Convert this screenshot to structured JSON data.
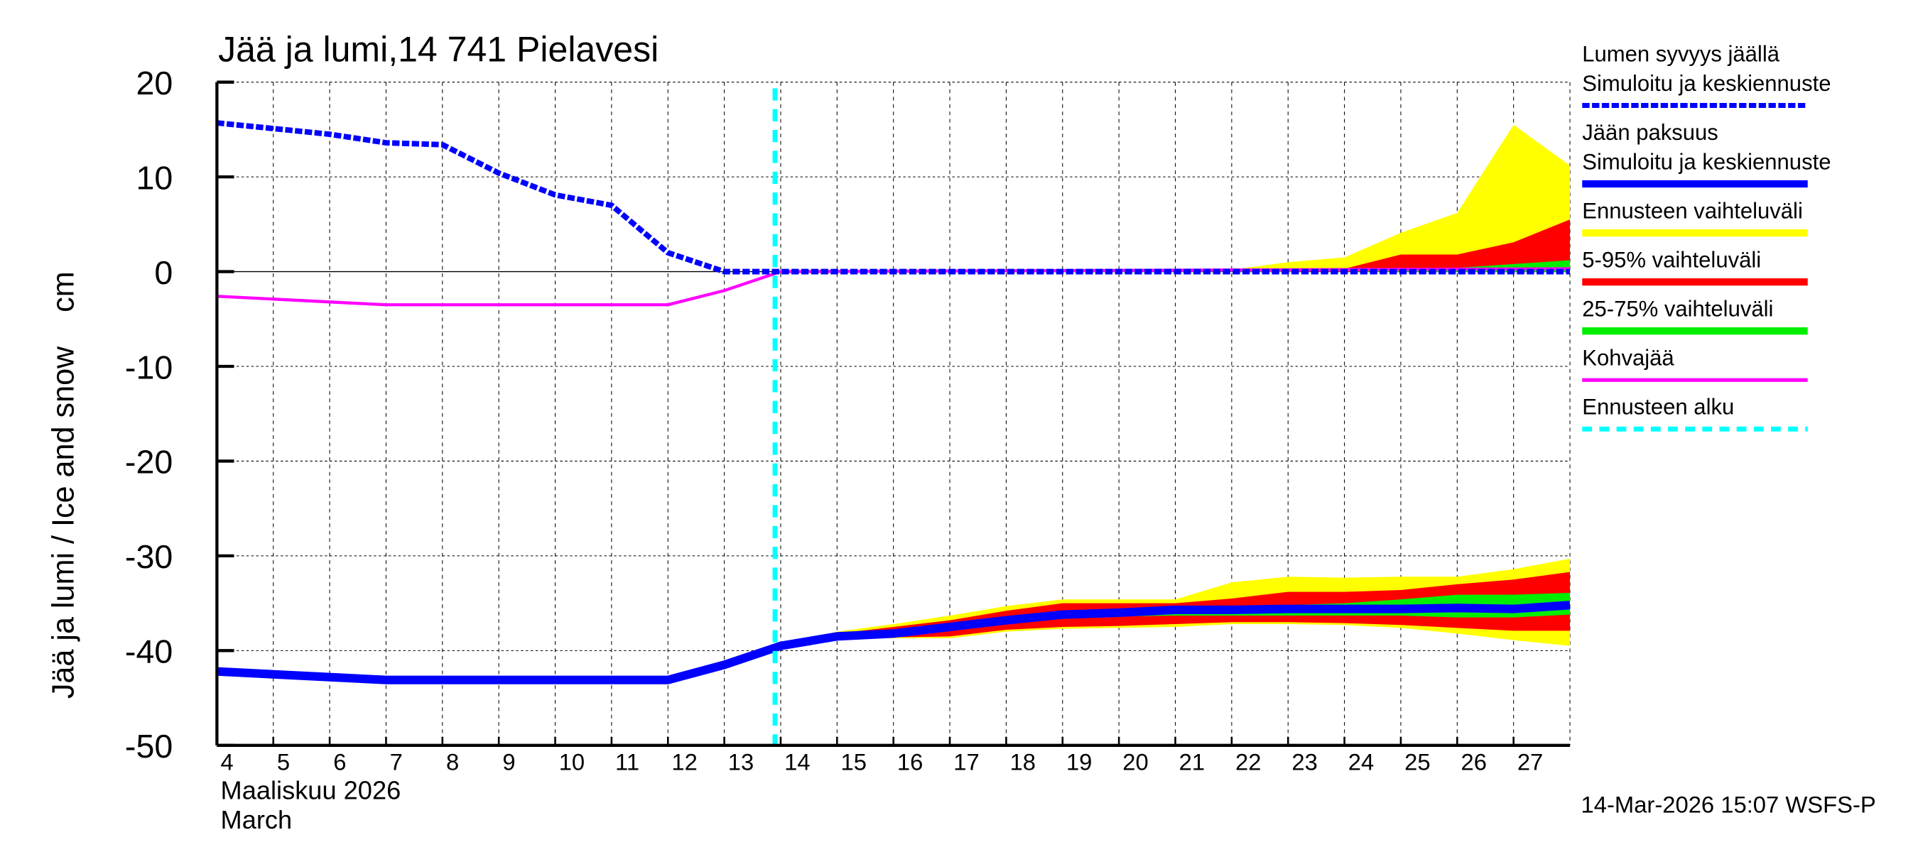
{
  "chart_data": {
    "type": "area",
    "title": "Jää ja lumi,14 741 Pielavesi",
    "ylabel": "Jää ja lumi / Ice and snow    cm",
    "xlabel_line1": "Maaliskuu 2026",
    "xlabel_line2": "March",
    "ylim": [
      -50,
      20
    ],
    "xlim": [
      4,
      28
    ],
    "yticks": [
      20,
      10,
      0,
      -10,
      -20,
      -30,
      -40,
      -50
    ],
    "xticks": [
      4,
      5,
      6,
      7,
      8,
      9,
      10,
      11,
      12,
      13,
      14,
      15,
      16,
      17,
      18,
      19,
      20,
      21,
      22,
      23,
      24,
      25,
      26,
      27
    ],
    "grid": true,
    "forecast_start": 13.9,
    "legend_position": "right",
    "legend": [
      {
        "label1": "Lumen syvyys jäällä",
        "label2": "Simuloitu ja keskiennuste",
        "color": "#0000ff",
        "style": "dashed-thick"
      },
      {
        "label1": "Jään paksuus",
        "label2": "Simuloitu ja keskiennuste",
        "color": "#0000ff",
        "style": "solid-thick"
      },
      {
        "label1": "Ennusteen vaihteluväli",
        "color": "#ffff00",
        "style": "band"
      },
      {
        "label1": "5-95% vaihteluväli",
        "color": "#ff0000",
        "style": "band"
      },
      {
        "label1": "25-75% vaihteluväli",
        "color": "#00ee00",
        "style": "band"
      },
      {
        "label1": "Kohvajää",
        "color": "#ff00ff",
        "style": "solid"
      },
      {
        "label1": "Ennusteen alku",
        "color": "#00ffff",
        "style": "dashed"
      }
    ],
    "snow": {
      "x": [
        4,
        5,
        6,
        7,
        8,
        9,
        10,
        11,
        12,
        13,
        14,
        28
      ],
      "y": [
        15.7,
        15.1,
        14.5,
        13.6,
        13.4,
        10.4,
        8.1,
        7.0,
        2.0,
        0,
        0,
        0
      ]
    },
    "kohva": {
      "x": [
        4,
        7,
        12,
        13,
        14,
        28
      ],
      "y": [
        -2.6,
        -3.5,
        -3.5,
        -2.0,
        0,
        0.3
      ]
    },
    "ice": {
      "x": [
        4,
        7,
        12,
        13,
        14,
        15,
        16,
        17,
        18,
        19,
        20,
        21,
        22,
        23,
        24,
        25,
        26,
        27,
        28
      ],
      "y": [
        -42.2,
        -43.1,
        -43.1,
        -41.5,
        -39.5,
        -38.5,
        -38.2,
        -37.5,
        -36.8,
        -36.2,
        -36.0,
        -35.7,
        -35.7,
        -35.6,
        -35.6,
        -35.6,
        -35.5,
        -35.6,
        -35.2
      ]
    },
    "ice_bands": {
      "x": [
        14,
        15,
        16,
        17,
        18,
        19,
        20,
        21,
        22,
        23,
        24,
        25,
        26,
        27,
        28
      ],
      "yellow_hi": [
        -39.5,
        -38,
        -37.2,
        -36.3,
        -35.3,
        -34.6,
        -34.6,
        -34.6,
        -32.8,
        -32.2,
        -32.3,
        -32.2,
        -32.2,
        -31.4,
        -30.3
      ],
      "red_hi": [
        -39.5,
        -38.2,
        -37.5,
        -36.8,
        -35.8,
        -35.0,
        -35.0,
        -35.0,
        -34.5,
        -33.8,
        -33.8,
        -33.6,
        -33.0,
        -32.5,
        -31.7
      ],
      "green_hi": [
        -39.5,
        -38.4,
        -38.0,
        -37.2,
        -36.5,
        -35.9,
        -35.7,
        -35.4,
        -35.3,
        -35.2,
        -35.0,
        -34.6,
        -34.1,
        -34.1,
        -33.9
      ],
      "green_lo": [
        -39.5,
        -38.6,
        -38.4,
        -37.8,
        -37.1,
        -36.6,
        -36.4,
        -36.3,
        -36.3,
        -36.3,
        -36.3,
        -36.3,
        -36.5,
        -36.5,
        -36.2
      ],
      "red_lo": [
        -39.5,
        -38.7,
        -38.6,
        -38.5,
        -37.8,
        -37.5,
        -37.4,
        -37.2,
        -37.0,
        -37.0,
        -37.1,
        -37.3,
        -37.6,
        -37.9,
        -37.9
      ],
      "yellow_lo": [
        -39.5,
        -38.7,
        -38.7,
        -38.7,
        -38.0,
        -37.7,
        -37.6,
        -37.5,
        -37.2,
        -37.2,
        -37.3,
        -37.6,
        -38.2,
        -38.9,
        -39.5
      ]
    },
    "snow_bands": {
      "x": [
        21,
        22,
        23,
        24,
        25,
        26,
        27,
        28
      ],
      "yellow_hi": [
        0,
        0.2,
        1.0,
        1.5,
        4.1,
        6.2,
        15.5,
        11.2
      ],
      "red_hi": [
        0,
        0,
        0,
        0.3,
        1.8,
        1.8,
        3.1,
        5.5
      ],
      "green_hi": [
        0,
        0,
        0,
        0,
        0.1,
        0.4,
        0.8,
        1.2
      ],
      "lo": [
        0,
        0,
        0,
        0,
        0,
        0,
        0,
        0
      ]
    },
    "footer": "14-Mar-2026 15:07 WSFS-P"
  }
}
